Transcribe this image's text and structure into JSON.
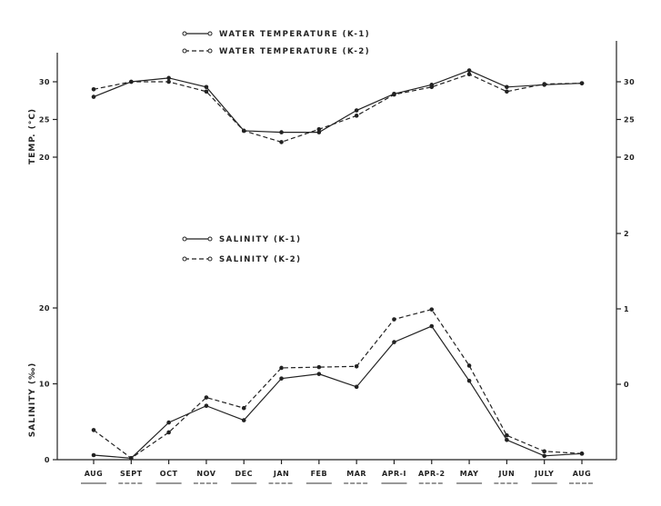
{
  "chart_data": {
    "type": "line",
    "categories": [
      "AUG",
      "SEPT",
      "OCT",
      "NOV",
      "DEC",
      "JAN",
      "FEB",
      "MAR",
      "APR-I",
      "APR-2",
      "MAY",
      "JUN",
      "JULY",
      "AUG"
    ],
    "panels": [
      {
        "id": "temperature",
        "ylabel": "TEMP. (°C)",
        "yticks_left": [
          20,
          25,
          30
        ],
        "yticks_right": [
          20,
          25,
          30
        ],
        "series": [
          {
            "name": "WATER TEMPERATURE (K-1)",
            "style": "solid",
            "values": [
              28.0,
              30.0,
              30.5,
              29.3,
              23.5,
              23.3,
              23.3,
              26.2,
              28.4,
              29.6,
              31.5,
              29.3,
              29.6,
              29.8
            ]
          },
          {
            "name": "WATER TEMPERATURE (K-2)",
            "style": "dashed",
            "values": [
              29.0,
              30.0,
              30.0,
              28.7,
              23.5,
              22.0,
              23.7,
              25.5,
              28.3,
              29.3,
              31.0,
              28.7,
              29.7,
              29.8
            ]
          }
        ]
      },
      {
        "id": "salinity",
        "ylabel": "SALINITY (‰)",
        "yticks_left": [
          0,
          10,
          20
        ],
        "yticks_right": [
          0,
          1,
          2
        ],
        "series": [
          {
            "name": "SALINITY (K-1)",
            "style": "solid",
            "values": [
              0.6,
              0.2,
              4.9,
              7.1,
              5.2,
              10.7,
              11.3,
              9.6,
              15.5,
              17.6,
              10.4,
              2.6,
              0.5,
              0.8
            ]
          },
          {
            "name": "SALINITY (K-2)",
            "style": "dashed",
            "values": [
              3.9,
              0.2,
              3.6,
              8.2,
              6.8,
              12.1,
              12.2,
              12.3,
              18.5,
              19.8,
              12.4,
              3.2,
              1.1,
              0.8
            ]
          }
        ]
      }
    ]
  }
}
